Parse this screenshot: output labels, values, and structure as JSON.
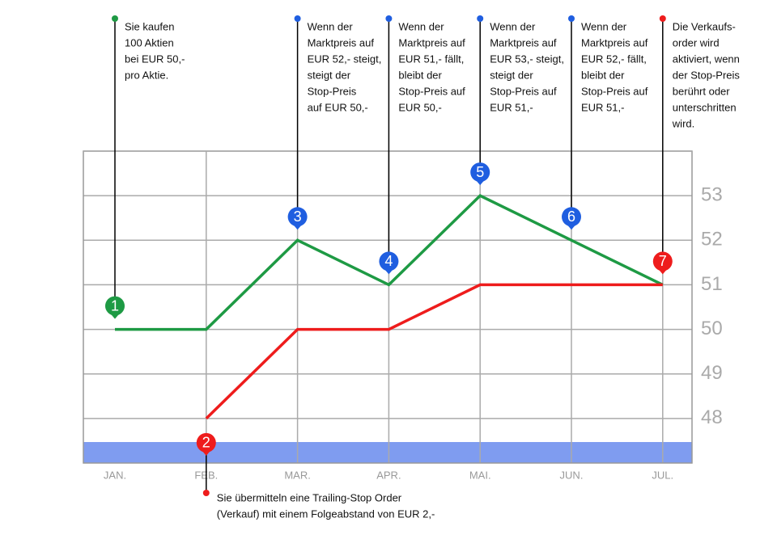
{
  "chart_data": {
    "type": "line",
    "categories": [
      "JAN.",
      "FEB.",
      "MAR.",
      "APR.",
      "MAI.",
      "JUN.",
      "JUL."
    ],
    "series": [
      {
        "color": "#1e9a44",
        "values": [
          50,
          50,
          52,
          51,
          53,
          52,
          51
        ]
      },
      {
        "color": "#ee1c1c",
        "values": [
          null,
          48,
          50,
          50,
          51,
          51,
          51
        ]
      }
    ],
    "ylim": [
      47,
      54
    ],
    "yticks": [
      48,
      49,
      50,
      51,
      52,
      53
    ],
    "grid": true,
    "annotations": [
      {
        "label": "1",
        "category": 0,
        "series": 0,
        "position": "above",
        "color": "#1e9a44",
        "lines": [
          "Sie kaufen",
          "100 Aktien",
          "bei EUR 50,-",
          "pro Aktie."
        ]
      },
      {
        "label": "2",
        "category": 1,
        "series": 1,
        "position": "below",
        "color": "#ee1c1c",
        "lines": [
          "Sie übermitteln eine Trailing-Stop Order",
          "(Verkauf) mit einem Folgeabstand von EUR 2,-"
        ]
      },
      {
        "label": "3",
        "category": 2,
        "series": 0,
        "position": "above",
        "color": "#1f5ee0",
        "lines": [
          "Wenn der",
          "Marktpreis auf",
          "EUR 52,- steigt,",
          "steigt der",
          "Stop-Preis",
          "auf EUR 50,-"
        ]
      },
      {
        "label": "4",
        "category": 3,
        "series": 0,
        "position": "above",
        "color": "#1f5ee0",
        "lines": [
          "Wenn der",
          "Marktpreis auf",
          "EUR 51,- fällt,",
          "bleibt der",
          "Stop-Preis auf",
          "EUR 50,-"
        ]
      },
      {
        "label": "5",
        "category": 4,
        "series": 0,
        "position": "above",
        "color": "#1f5ee0",
        "lines": [
          "Wenn der",
          "Marktpreis auf",
          "EUR 53,- steigt,",
          "steigt der",
          "Stop-Preis auf",
          "EUR 51,-"
        ]
      },
      {
        "label": "6",
        "category": 5,
        "series": 0,
        "position": "above",
        "color": "#1f5ee0",
        "lines": [
          "Wenn der",
          "Marktpreis auf",
          "EUR 52,- fällt,",
          "bleibt der",
          "Stop-Preis auf",
          "EUR 51,-"
        ]
      },
      {
        "label": "7",
        "category": 6,
        "series": 0,
        "position": "above",
        "color": "#ee1c1c",
        "lines": [
          "Die Verkaufs-",
          "order wird",
          "aktiviert, wenn",
          "der Stop-Preis",
          "berührt oder",
          "unterschritten",
          "wird."
        ]
      }
    ]
  }
}
